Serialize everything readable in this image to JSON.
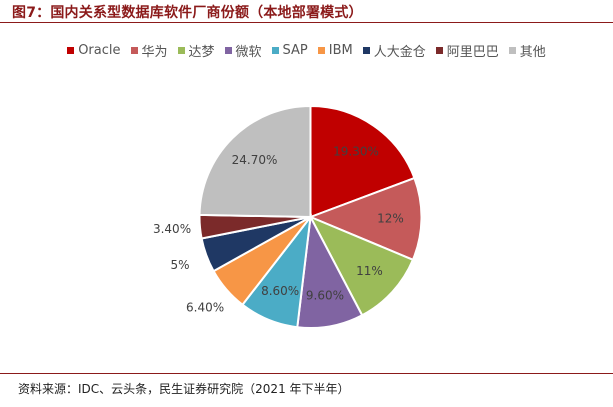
{
  "title": "图7：国内关系型数据库软件厂商份额（本地部署模式）",
  "source": "资料来源：IDC、云头条，民生证券研究院（2021 年下半年）",
  "chart_data": {
    "type": "pie",
    "title": "图7：国内关系型数据库软件厂商份额（本地部署模式）",
    "legend_position": "top",
    "labels": [
      "Oracle",
      "华为",
      "达梦",
      "微软",
      "SAP",
      "IBM",
      "人大金仓",
      "阿里巴巴",
      "其他"
    ],
    "values": [
      19.3,
      12,
      11,
      9.6,
      8.6,
      6.4,
      5,
      3.4,
      24.7
    ],
    "value_labels": [
      "19.30%",
      "12%",
      "11%",
      "9.60%",
      "8.60%",
      "6.40%",
      "5%",
      "3.40%",
      "24.70%"
    ],
    "colors": [
      "#c00000",
      "#c55a5a",
      "#9bbb59",
      "#8064a2",
      "#4bacc6",
      "#f79646",
      "#1f3864",
      "#7b2a2a",
      "#bfbfbf"
    ],
    "start_angle_deg": 0,
    "direction": "clockwise"
  }
}
